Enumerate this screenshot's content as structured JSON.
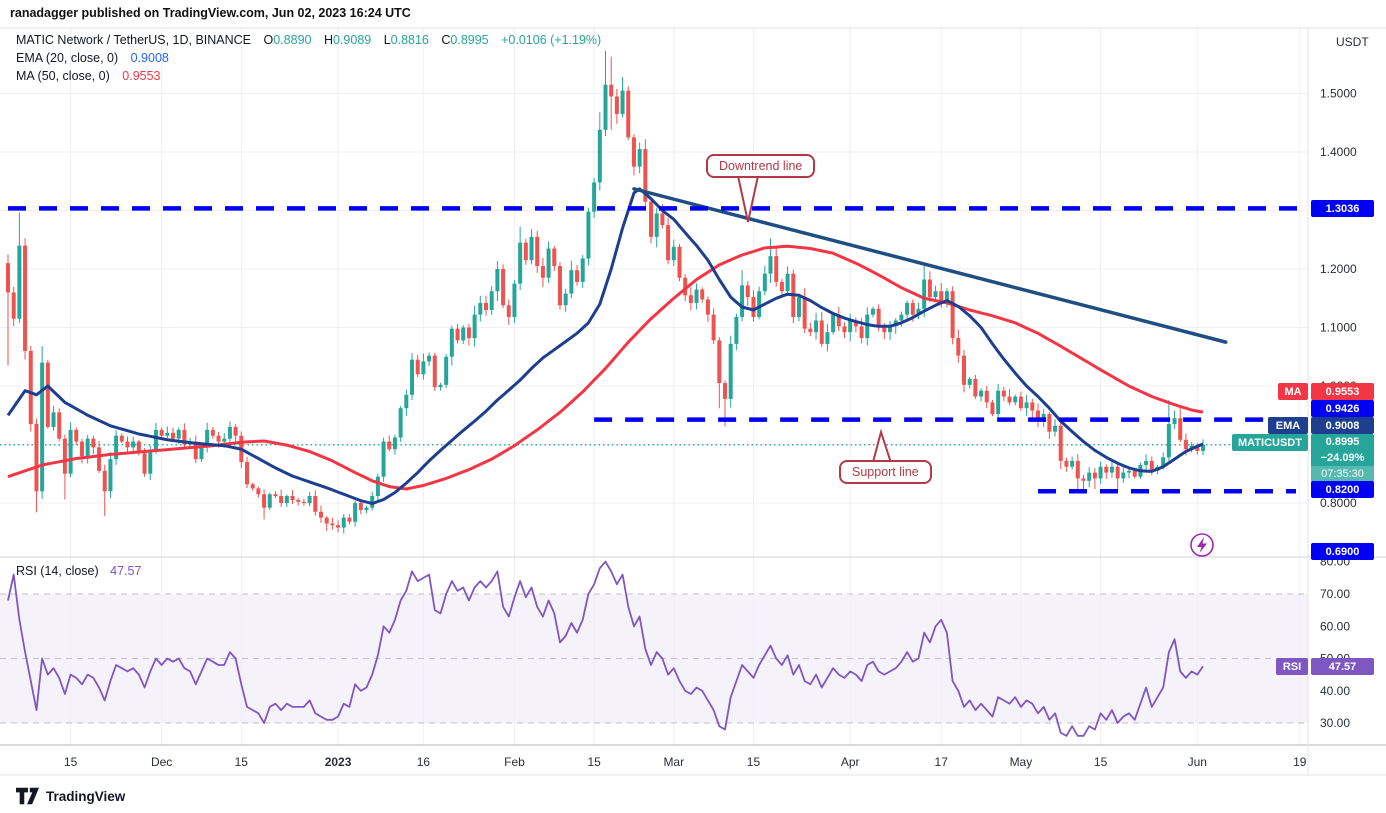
{
  "header": {
    "attribution": "ranadagger published on TradingView.com, Jun 02, 2023 16:24 UTC"
  },
  "legend": {
    "title": "MATIC Network / TetherUS, 1D, BINANCE",
    "o_label": "O",
    "o_value": "0.8890",
    "h_label": "H",
    "h_value": "0.9089",
    "l_label": "L",
    "l_value": "0.8816",
    "c_label": "C",
    "c_value": "0.8995",
    "change": "+0.0106 (+1.19%)",
    "ema_label": "EMA (20, close, 0)",
    "ema_value": "0.9008",
    "ma_label": "MA (50, close, 0)",
    "ma_value": "0.9553",
    "rsi_label": "RSI (14, close)",
    "rsi_value": "47.57"
  },
  "badges": {
    "resistance": "1.3036",
    "ma_tag": "MA",
    "ma_value": "0.9553",
    "support": "0.9426",
    "ema_tag": "EMA",
    "ema_value": "0.9008",
    "symbol_tag": "MATICUSDT",
    "last_price": "0.8995",
    "change_pct": "−24.09%",
    "countdown": "07:35:30",
    "lower_support": "0.8200",
    "alert_level": "0.6900",
    "rsi_tag": "RSI",
    "rsi_value": "47.57"
  },
  "annotations": {
    "downtrend": "Downtrend line",
    "support": "Support line"
  },
  "axis": {
    "currency": "USDT",
    "price_ticks": [
      {
        "value": 1.5,
        "label": "1.5000"
      },
      {
        "value": 1.4,
        "label": "1.4000"
      },
      {
        "value": 1.2,
        "label": "1.2000"
      },
      {
        "value": 1.1,
        "label": "1.1000"
      },
      {
        "value": 1.0,
        "label": "1.0000"
      },
      {
        "value": 0.8,
        "label": "0.8000"
      }
    ],
    "rsi_ticks": [
      {
        "value": 80,
        "label": "80.00"
      },
      {
        "value": 70,
        "label": "70.00"
      },
      {
        "value": 60,
        "label": "60.00"
      },
      {
        "value": 50,
        "label": "50.00"
      },
      {
        "value": 40,
        "label": "40.00"
      },
      {
        "value": 30,
        "label": "30.00"
      }
    ],
    "time_ticks": [
      {
        "label": "15",
        "index": 11
      },
      {
        "label": "Dec",
        "index": 27
      },
      {
        "label": "15",
        "index": 41
      },
      {
        "label": "2023",
        "index": 58
      },
      {
        "label": "16",
        "index": 73
      },
      {
        "label": "Feb",
        "index": 89
      },
      {
        "label": "15",
        "index": 103
      },
      {
        "label": "Mar",
        "index": 117
      },
      {
        "label": "15",
        "index": 131
      },
      {
        "label": "Apr",
        "index": 148
      },
      {
        "label": "17",
        "index": 164
      },
      {
        "label": "May",
        "index": 178
      },
      {
        "label": "15",
        "index": 192
      },
      {
        "label": "Jun",
        "index": 209
      },
      {
        "label": "19",
        "index": 227
      }
    ]
  },
  "watermark": "TradingView",
  "colors": {
    "up": "#26a69a",
    "down": "#ef5350",
    "ema": "#1e3f8f",
    "trend": "#1f4e82",
    "ma": "#f23645",
    "level_blue": "#0202f2",
    "rsi": "#7e57c2",
    "annotation": "#b23a48",
    "current_price": "#26a69a",
    "alert_icon": "#9c27b0"
  },
  "chart_data": {
    "type": "candlestick",
    "title": "MATIC Network / TetherUS, 1D, BINANCE",
    "symbol": "MATICUSDT",
    "exchange": "BINANCE",
    "interval": "1D",
    "date_range": "Nov 04 2022 - Jun 02 2023 (one value per day)",
    "price_axis_range": [
      0.69,
      1.61
    ],
    "price_gridlines": [
      1.5,
      1.4,
      1.3,
      1.2,
      1.1,
      1.0,
      0.9,
      0.8
    ],
    "closes": [
      1.16,
      1.115,
      1.24,
      1.06,
      0.935,
      0.82,
      1.04,
      0.93,
      0.955,
      0.91,
      0.85,
      0.925,
      0.905,
      0.88,
      0.91,
      0.895,
      0.855,
      0.82,
      0.875,
      0.915,
      0.905,
      0.895,
      0.905,
      0.885,
      0.85,
      0.89,
      0.925,
      0.915,
      0.92,
      0.91,
      0.925,
      0.9,
      0.905,
      0.875,
      0.895,
      0.925,
      0.915,
      0.905,
      0.91,
      0.93,
      0.915,
      0.87,
      0.832,
      0.825,
      0.815,
      0.792,
      0.815,
      0.812,
      0.8,
      0.812,
      0.805,
      0.802,
      0.8,
      0.812,
      0.785,
      0.775,
      0.765,
      0.762,
      0.758,
      0.775,
      0.768,
      0.8,
      0.788,
      0.792,
      0.812,
      0.845,
      0.905,
      0.892,
      0.912,
      0.962,
      0.985,
      1.045,
      1.02,
      1.042,
      1.052,
      0.998,
      1.002,
      1.05,
      1.098,
      1.078,
      1.1,
      1.082,
      1.122,
      1.142,
      1.13,
      1.162,
      1.2,
      1.138,
      1.118,
      1.175,
      1.245,
      1.215,
      1.255,
      1.205,
      1.185,
      1.235,
      1.205,
      1.138,
      1.158,
      1.198,
      1.178,
      1.218,
      1.298,
      1.348,
      1.438,
      1.515,
      1.495,
      1.465,
      1.505,
      1.425,
      1.375,
      1.405,
      1.315,
      1.255,
      1.295,
      1.275,
      1.215,
      1.238,
      1.185,
      1.155,
      1.142,
      1.165,
      1.148,
      1.122,
      1.078,
      1.005,
      0.978,
      1.072,
      1.118,
      1.172,
      1.152,
      1.118,
      1.162,
      1.192,
      1.222,
      1.178,
      1.162,
      1.192,
      1.118,
      1.152,
      1.098,
      1.092,
      1.112,
      1.072,
      1.092,
      1.122,
      1.102,
      1.092,
      1.112,
      1.102,
      1.082,
      1.122,
      1.132,
      1.102,
      1.092,
      1.102,
      1.112,
      1.122,
      1.142,
      1.122,
      1.132,
      1.182,
      1.152,
      1.162,
      1.142,
      1.162,
      1.082,
      1.052,
      1.002,
      1.012,
      0.982,
      0.992,
      0.972,
      0.952,
      0.992,
      0.982,
      0.972,
      0.982,
      0.962,
      0.972,
      0.958,
      0.942,
      0.952,
      0.922,
      0.932,
      0.872,
      0.862,
      0.872,
      0.842,
      0.838,
      0.852,
      0.842,
      0.862,
      0.852,
      0.862,
      0.842,
      0.852,
      0.855,
      0.845,
      0.865,
      0.872,
      0.855,
      0.862,
      0.878,
      0.935,
      0.945,
      0.908,
      0.892,
      0.898,
      0.889,
      0.8995
    ],
    "wick_overrides": {
      "0": {
        "o": 1.21,
        "h": 1.225,
        "l": 1.035
      },
      "2": {
        "h": 1.2966
      },
      "5": {
        "l": 0.784
      },
      "6": {
        "h": 1.068
      },
      "10": {
        "l": 0.806
      },
      "17": {
        "l": 0.778
      },
      "45": {
        "l": 0.772
      },
      "56": {
        "l": 0.752
      },
      "71": {
        "h": 1.056
      },
      "90": {
        "h": 1.272
      },
      "102": {
        "h": 1.305
      },
      "104": {
        "h": 1.468
      },
      "105": {
        "h": 1.573
      },
      "106": {
        "h": 1.563,
        "l": 1.438
      },
      "108": {
        "h": 1.528
      },
      "125": {
        "l": 0.962
      },
      "126": {
        "l": 0.931
      },
      "129": {
        "h": 1.198
      },
      "134": {
        "h": 1.252
      },
      "161": {
        "h": 1.205
      },
      "185": {
        "l": 0.858
      },
      "188": {
        "l": 0.821
      },
      "189": {
        "l": 0.82
      },
      "191": {
        "l": 0.824
      },
      "195": {
        "l": 0.822
      },
      "204": {
        "h": 0.976
      },
      "205": {
        "h": 0.958
      },
      "206": {
        "h": 0.963
      },
      "210": {
        "o": 0.889,
        "h": 0.9089,
        "l": 0.8816,
        "c": 0.8995
      }
    },
    "last_candle": {
      "open": 0.889,
      "high": 0.9089,
      "low": 0.8816,
      "close": 0.8995,
      "change": "+0.0106 (+1.19%)"
    },
    "ema20_points": [
      [
        0,
        0.95
      ],
      [
        3,
        0.992
      ],
      [
        5,
        0.985
      ],
      [
        7,
        1.0
      ],
      [
        10,
        0.972
      ],
      [
        14,
        0.95
      ],
      [
        18,
        0.932
      ],
      [
        23,
        0.918
      ],
      [
        28,
        0.908
      ],
      [
        33,
        0.902
      ],
      [
        38,
        0.898
      ],
      [
        41,
        0.892
      ],
      [
        44,
        0.876
      ],
      [
        47,
        0.86
      ],
      [
        50,
        0.846
      ],
      [
        53,
        0.836
      ],
      [
        56,
        0.826
      ],
      [
        59,
        0.815
      ],
      [
        62,
        0.804
      ],
      [
        64,
        0.799
      ],
      [
        66,
        0.806
      ],
      [
        68,
        0.818
      ],
      [
        70,
        0.834
      ],
      [
        72,
        0.852
      ],
      [
        74,
        0.872
      ],
      [
        76,
        0.89
      ],
      [
        78,
        0.907
      ],
      [
        80,
        0.924
      ],
      [
        82,
        0.94
      ],
      [
        84,
        0.957
      ],
      [
        86,
        0.976
      ],
      [
        88,
        0.993
      ],
      [
        90,
        1.01
      ],
      [
        92,
        1.03
      ],
      [
        94,
        1.048
      ],
      [
        96,
        1.062
      ],
      [
        98,
        1.076
      ],
      [
        100,
        1.09
      ],
      [
        102,
        1.108
      ],
      [
        104,
        1.14
      ],
      [
        106,
        1.2
      ],
      [
        108,
        1.27
      ],
      [
        110,
        1.33
      ],
      [
        111,
        1.337
      ],
      [
        113,
        1.32
      ],
      [
        115,
        1.3
      ],
      [
        117,
        1.285
      ],
      [
        119,
        1.262
      ],
      [
        121,
        1.24
      ],
      [
        123,
        1.215
      ],
      [
        125,
        1.182
      ],
      [
        127,
        1.152
      ],
      [
        129,
        1.135
      ],
      [
        131,
        1.13
      ],
      [
        133,
        1.14
      ],
      [
        135,
        1.15
      ],
      [
        137,
        1.157
      ],
      [
        139,
        1.155
      ],
      [
        141,
        1.146
      ],
      [
        143,
        1.134
      ],
      [
        145,
        1.124
      ],
      [
        147,
        1.116
      ],
      [
        149,
        1.11
      ],
      [
        151,
        1.105
      ],
      [
        153,
        1.102
      ],
      [
        155,
        1.102
      ],
      [
        157,
        1.108
      ],
      [
        159,
        1.117
      ],
      [
        161,
        1.128
      ],
      [
        163,
        1.138
      ],
      [
        165,
        1.146
      ],
      [
        167,
        1.136
      ],
      [
        169,
        1.12
      ],
      [
        171,
        1.1
      ],
      [
        173,
        1.072
      ],
      [
        175,
        1.046
      ],
      [
        177,
        1.022
      ],
      [
        179,
        1.0
      ],
      [
        181,
        0.982
      ],
      [
        183,
        0.962
      ],
      [
        185,
        0.94
      ],
      [
        187,
        0.922
      ],
      [
        189,
        0.905
      ],
      [
        191,
        0.89
      ],
      [
        193,
        0.878
      ],
      [
        195,
        0.868
      ],
      [
        197,
        0.86
      ],
      [
        199,
        0.855
      ],
      [
        201,
        0.854
      ],
      [
        203,
        0.862
      ],
      [
        205,
        0.875
      ],
      [
        207,
        0.888
      ],
      [
        209,
        0.897
      ],
      [
        210,
        0.9008
      ]
    ],
    "ma50_points": [
      [
        0,
        0.845
      ],
      [
        6,
        0.865
      ],
      [
        12,
        0.876
      ],
      [
        18,
        0.883
      ],
      [
        24,
        0.888
      ],
      [
        30,
        0.893
      ],
      [
        36,
        0.898
      ],
      [
        41,
        0.904
      ],
      [
        45,
        0.906
      ],
      [
        49,
        0.899
      ],
      [
        53,
        0.888
      ],
      [
        57,
        0.872
      ],
      [
        61,
        0.852
      ],
      [
        64,
        0.838
      ],
      [
        67,
        0.828
      ],
      [
        70,
        0.824
      ],
      [
        73,
        0.83
      ],
      [
        77,
        0.842
      ],
      [
        81,
        0.857
      ],
      [
        85,
        0.875
      ],
      [
        89,
        0.898
      ],
      [
        93,
        0.925
      ],
      [
        97,
        0.955
      ],
      [
        101,
        0.99
      ],
      [
        105,
        1.03
      ],
      [
        109,
        1.075
      ],
      [
        113,
        1.115
      ],
      [
        117,
        1.15
      ],
      [
        121,
        1.182
      ],
      [
        125,
        1.207
      ],
      [
        129,
        1.224
      ],
      [
        133,
        1.236
      ],
      [
        137,
        1.239
      ],
      [
        141,
        1.235
      ],
      [
        145,
        1.227
      ],
      [
        149,
        1.21
      ],
      [
        153,
        1.19
      ],
      [
        157,
        1.168
      ],
      [
        161,
        1.15
      ],
      [
        165,
        1.142
      ],
      [
        169,
        1.13
      ],
      [
        173,
        1.12
      ],
      [
        177,
        1.108
      ],
      [
        181,
        1.09
      ],
      [
        185,
        1.068
      ],
      [
        189,
        1.045
      ],
      [
        193,
        1.022
      ],
      [
        197,
        1.0
      ],
      [
        201,
        0.982
      ],
      [
        205,
        0.968
      ],
      [
        208,
        0.959
      ],
      [
        210,
        0.9553
      ]
    ],
    "rsi14": [
      68,
      76,
      62,
      52,
      43,
      34,
      50,
      45,
      47,
      44,
      39,
      45,
      44,
      42,
      45,
      44,
      41,
      37,
      43,
      48,
      47,
      46,
      47,
      45,
      41,
      46,
      50,
      48,
      50,
      49,
      50,
      47,
      46,
      42,
      46,
      50,
      49,
      48,
      48,
      52,
      50,
      42,
      35,
      34,
      33,
      30,
      35,
      36,
      34,
      36,
      35,
      35,
      35,
      37,
      33,
      32,
      31,
      31,
      32,
      36,
      35,
      42,
      40,
      41,
      45,
      51,
      60,
      58,
      62,
      68,
      71,
      77,
      74,
      75,
      76,
      65,
      64,
      70,
      74,
      71,
      72,
      68,
      72,
      74,
      72,
      74,
      77,
      66,
      63,
      69,
      74,
      69,
      72,
      66,
      63,
      68,
      64,
      55,
      57,
      61,
      58,
      62,
      70,
      73,
      78,
      80,
      77,
      73,
      76,
      66,
      60,
      63,
      53,
      48,
      52,
      50,
      45,
      47,
      43,
      40,
      39,
      41,
      40,
      37,
      34,
      29,
      28,
      38,
      43,
      48,
      46,
      44,
      48,
      51,
      54,
      50,
      48,
      51,
      45,
      48,
      43,
      42,
      45,
      41,
      44,
      47,
      45,
      44,
      46,
      45,
      43,
      48,
      49,
      46,
      45,
      46,
      47,
      49,
      52,
      49,
      50,
      58,
      55,
      60,
      62,
      58,
      43,
      40,
      35,
      37,
      34,
      36,
      34,
      32,
      38,
      37,
      36,
      38,
      35,
      37,
      36,
      33,
      35,
      31,
      33,
      27,
      26,
      29,
      26,
      26,
      29,
      28,
      33,
      31,
      34,
      30,
      32,
      33,
      31,
      36,
      41,
      35,
      38,
      41,
      52,
      56,
      46,
      44,
      46,
      45,
      47.57
    ],
    "levels": {
      "resistance": 1.3036,
      "support": 0.9426,
      "lower_support": 0.82,
      "alert": 0.69,
      "last_price": 0.8995
    },
    "downtrend_line": {
      "from_index": 110,
      "from_price": 1.337,
      "to_index": 214,
      "to_price": 1.075
    },
    "support_line_start_index": 103,
    "lower_support_start_index": 181,
    "rsi_band": [
      30,
      70
    ],
    "rsi_guides": [
      70,
      50,
      30
    ],
    "indicators": [
      {
        "name": "EMA",
        "params": "20, close, 0",
        "last_value": 0.9008
      },
      {
        "name": "MA",
        "params": "50, close, 0",
        "last_value": 0.9553
      },
      {
        "name": "RSI",
        "params": "14, close",
        "last_value": 47.57
      }
    ]
  }
}
